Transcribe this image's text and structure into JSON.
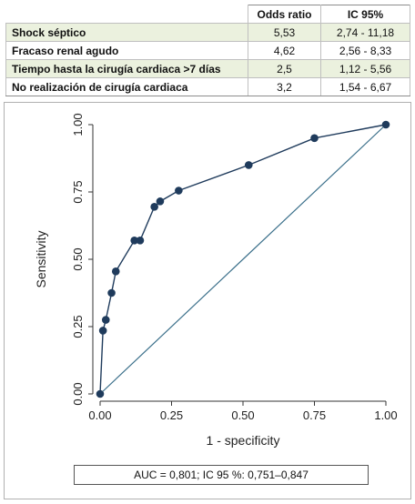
{
  "table": {
    "headers": [
      "",
      "Odds ratio",
      "IC 95%"
    ],
    "rows": [
      {
        "factor": "Shock séptico",
        "or": "5,53",
        "ci": "2,74 - 11,18"
      },
      {
        "factor": "Fracaso renal agudo",
        "or": "4,62",
        "ci": "2,56 - 8,33"
      },
      {
        "factor": "Tiempo hasta la cirugía cardiaca >7 días",
        "or": "2,5",
        "ci": "1,12 - 5,56"
      },
      {
        "factor": "No realización de cirugía cardiaca",
        "or": "3,2",
        "ci": "1,54 - 6,67"
      }
    ]
  },
  "chart_data": {
    "type": "line",
    "xlabel": "1 - specificity",
    "ylabel": "Sensitivity",
    "xlim": [
      0,
      1
    ],
    "ylim": [
      0,
      1
    ],
    "xticks": [
      "0.00",
      "0.25",
      "0.50",
      "0.75",
      "1.00"
    ],
    "yticks": [
      "0.00",
      "0.25",
      "0.50",
      "0.75",
      "1.00"
    ],
    "grid": false,
    "series": [
      {
        "color": "#1f3b5c",
        "x": [
          0.0,
          0.01,
          0.02,
          0.04,
          0.055,
          0.12,
          0.14,
          0.19,
          0.21,
          0.275,
          0.52,
          0.75,
          1.0
        ],
        "y": [
          0.0,
          0.235,
          0.275,
          0.375,
          0.455,
          0.57,
          0.57,
          0.695,
          0.715,
          0.755,
          0.85,
          0.95,
          1.0
        ]
      }
    ],
    "reference_line": {
      "x": [
        0,
        1
      ],
      "y": [
        0,
        1
      ],
      "color": "#3a6f8a"
    },
    "annotation": "AUC = 0,801; IC 95 %: 0,751–0,847"
  }
}
